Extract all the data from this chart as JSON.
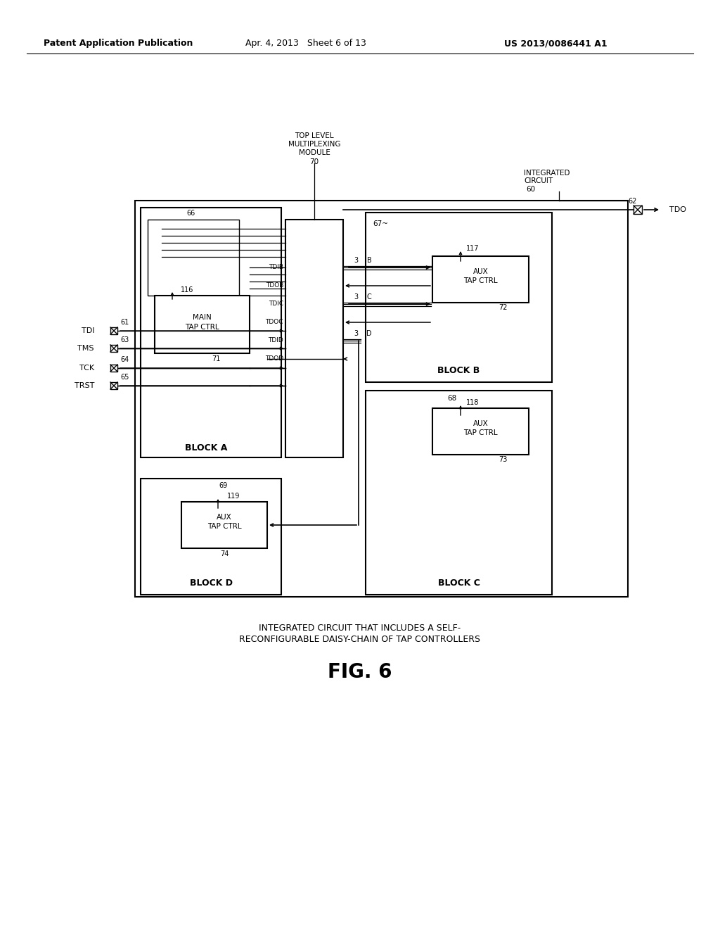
{
  "header_left": "Patent Application Publication",
  "header_mid": "Apr. 4, 2013   Sheet 6 of 13",
  "header_right": "US 2013/0086441 A1",
  "caption_line1": "INTEGRATED CIRCUIT THAT INCLUDES A SELF-",
  "caption_line2": "RECONFIGURABLE DAISY-CHAIN OF TAP CONTROLLERS",
  "fig_label": "FIG. 6"
}
